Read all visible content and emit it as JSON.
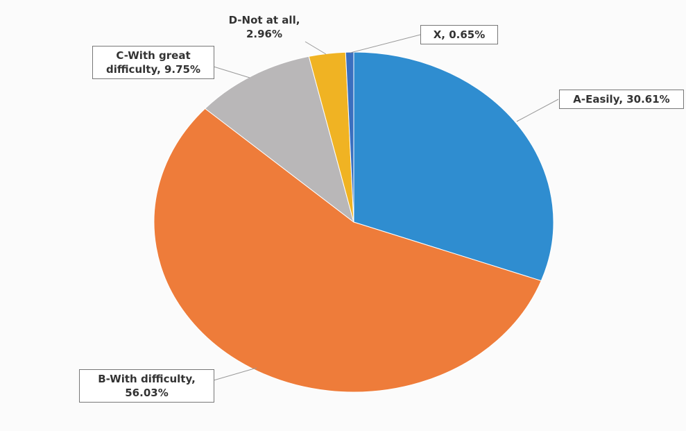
{
  "chart_data": {
    "type": "pie",
    "categories": [
      "A-Easily",
      "B-With difficulty",
      "C-With great difficulty",
      "D-Not at all",
      "X"
    ],
    "values": [
      30.61,
      56.03,
      9.75,
      2.96,
      0.65
    ],
    "value_labels": [
      "30.61%",
      "56.03%",
      "9.75%",
      "2.96%",
      "0.65%"
    ],
    "colors": [
      "#2f8dd0",
      "#ee7c3a",
      "#b9b7b8",
      "#f0b323",
      "#3a6fbf"
    ]
  }
}
